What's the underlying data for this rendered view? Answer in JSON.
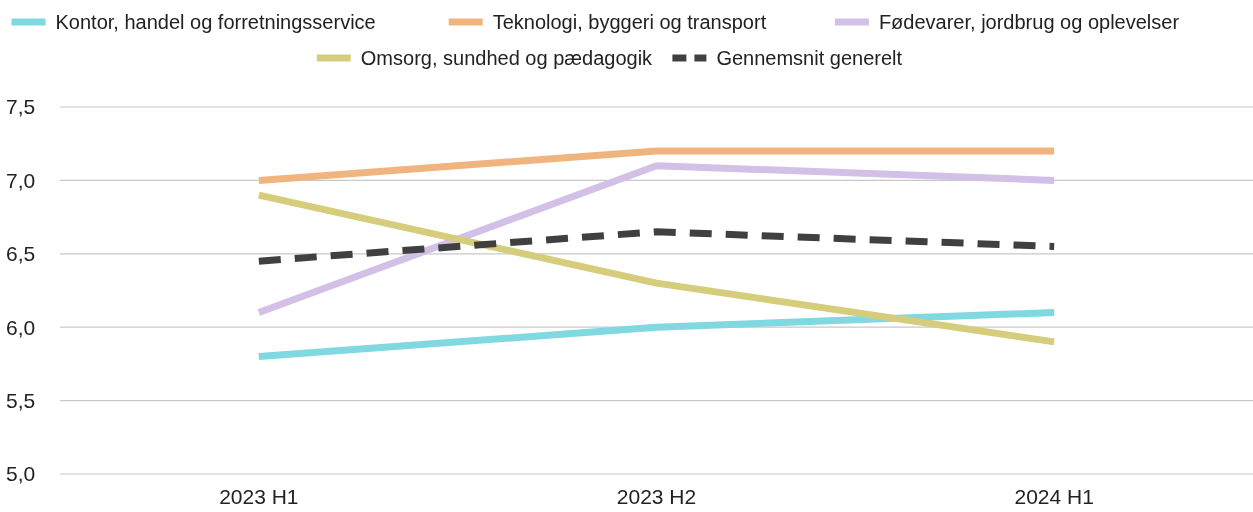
{
  "chart_data": {
    "type": "line",
    "categories": [
      "2023 H1",
      "2023 H2",
      "2024 H1"
    ],
    "ylim": [
      5.0,
      7.5
    ],
    "yticks": [
      {
        "value": 5.0,
        "label": "5,0"
      },
      {
        "value": 5.5,
        "label": "5,5"
      },
      {
        "value": 6.0,
        "label": "6,0"
      },
      {
        "value": 6.5,
        "label": "6,5"
      },
      {
        "value": 7.0,
        "label": "7,0"
      },
      {
        "value": 7.5,
        "label": "7,5"
      }
    ],
    "grid": "y",
    "legend": "top",
    "marker": "none",
    "series": [
      {
        "name": "Kontor, handel og forretningsservice",
        "color": "#80d8e0",
        "values": [
          5.8,
          6.0,
          6.1
        ]
      },
      {
        "name": "Teknologi, byggeri og transport",
        "color": "#f0b47e",
        "values": [
          7.0,
          7.2,
          7.2
        ]
      },
      {
        "name": "Fødevarer, jordbrug og oplevelser",
        "color": "#d3c0e6",
        "values": [
          6.1,
          7.1,
          7.0
        ]
      },
      {
        "name": "Omsorg, sundhed og pædagogik",
        "color": "#d6cd7c",
        "values": [
          6.9,
          6.3,
          5.9
        ]
      },
      {
        "name": "Gennemsnit generelt",
        "color": "#404040",
        "values": [
          6.45,
          6.65,
          6.55
        ],
        "line_style": "dashed"
      }
    ]
  }
}
